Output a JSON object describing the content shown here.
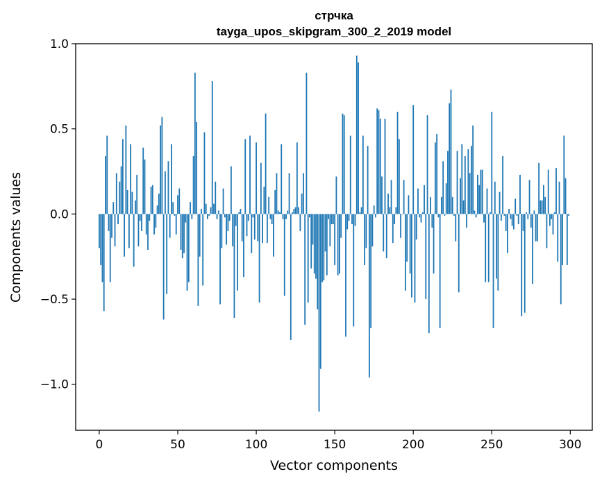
{
  "chart_data": {
    "type": "bar",
    "title_line1": "стрчка",
    "title_line2": "tayga_upos_skipgram_300_2_2019 model",
    "xlabel": "Vector components",
    "ylabel": "Components values",
    "xlim": [
      -15,
      314
    ],
    "ylim": [
      -1.27,
      1.0
    ],
    "xticks": [
      0,
      50,
      100,
      150,
      200,
      250,
      300
    ],
    "xtick_labels": [
      "0",
      "50",
      "100",
      "150",
      "200",
      "250",
      "300"
    ],
    "yticks": [
      1.0,
      0.5,
      0.0,
      -0.5,
      -1.0
    ],
    "ytick_labels": [
      "1.0",
      "0.5",
      "0.0",
      "−0.5",
      "−1.0"
    ],
    "grid": false,
    "bar_color": "#1f77b4",
    "values": [
      -0.2,
      -0.3,
      -0.4,
      -0.57,
      0.34,
      0.46,
      -0.1,
      -0.4,
      -0.14,
      0.07,
      -0.19,
      0.24,
      -0.06,
      0.19,
      0.28,
      0.44,
      -0.25,
      0.52,
      0.14,
      -0.2,
      0.41,
      0.13,
      -0.31,
      0.08,
      0.23,
      -0.19,
      -0.04,
      -0.1,
      0.39,
      0.32,
      -0.12,
      -0.21,
      -0.04,
      0.16,
      0.17,
      -0.12,
      -0.08,
      0.05,
      0.12,
      0.52,
      0.57,
      -0.62,
      0.25,
      -0.47,
      0.31,
      -0.14,
      0.41,
      0.07,
      -0.01,
      -0.12,
      0.11,
      0.15,
      -0.21,
      -0.26,
      -0.23,
      -0.05,
      -0.45,
      -0.4,
      0.07,
      -0.03,
      0.34,
      0.83,
      0.54,
      -0.54,
      -0.25,
      0.03,
      -0.42,
      0.48,
      0.06,
      -0.03,
      -0.01,
      0.04,
      0.78,
      0.06,
      0.19,
      -0.03,
      0.02,
      -0.53,
      -0.2,
      0.15,
      -0.02,
      -0.18,
      -0.1,
      -0.04,
      0.28,
      -0.19,
      -0.61,
      -0.07,
      -0.45,
      0.01,
      0.03,
      -0.16,
      -0.37,
      0.44,
      -0.13,
      -0.04,
      0.46,
      -0.23,
      -0.02,
      -0.15,
      0.42,
      -0.16,
      -0.52,
      0.3,
      -0.17,
      0.16,
      0.59,
      -0.17,
      0.1,
      -0.03,
      -0.06,
      -0.25,
      0.14,
      0.24,
      0.02,
      0.01,
      0.41,
      -0.03,
      -0.48,
      -0.03,
      0.02,
      0.24,
      -0.74,
      0.01,
      0.03,
      0.04,
      0.42,
      0.04,
      -0.1,
      0.12,
      0.24,
      -0.65,
      0.83,
      -0.52,
      -0.02,
      -0.32,
      -0.18,
      -0.35,
      -0.38,
      -0.56,
      -1.16,
      -0.91,
      -0.4,
      -0.39,
      -0.22,
      -0.36,
      -0.03,
      -0.19,
      -0.06,
      -0.06,
      -0.3,
      0.22,
      -0.36,
      -0.35,
      -0.14,
      0.59,
      0.58,
      -0.72,
      -0.09,
      -0.04,
      0.46,
      -0.06,
      -0.66,
      -0.07,
      0.93,
      0.89,
      0.01,
      0.04,
      0.46,
      -0.3,
      -0.2,
      0.4,
      -0.96,
      -0.67,
      -0.19,
      0.05,
      -0.02,
      0.62,
      0.61,
      0.56,
      0.22,
      -0.22,
      0.56,
      -0.26,
      0.12,
      0.04,
      0.2,
      -0.17,
      -0.06,
      0.04,
      0.6,
      0.44,
      -0.14,
      0.0,
      0.2,
      -0.45,
      -0.28,
      0.11,
      -0.35,
      -0.49,
      0.64,
      -0.52,
      -0.15,
      0.15,
      -0.02,
      -0.05,
      0.01,
      0.17,
      -0.5,
      0.58,
      -0.7,
      0.1,
      -0.08,
      -0.35,
      0.42,
      0.47,
      -0.02,
      -0.67,
      0.1,
      0.31,
      -0.01,
      0.18,
      0.37,
      0.65,
      0.73,
      0.1,
      -0.01,
      -0.16,
      0.37,
      -0.46,
      0.21,
      0.41,
      0.08,
      0.34,
      -0.08,
      0.38,
      0.24,
      0.4,
      0.52,
      0.02,
      -0.02,
      0.23,
      0.17,
      0.26,
      0.26,
      -0.05,
      -0.4,
      0.15,
      -0.4,
      0.01,
      0.6,
      -0.67,
      0.19,
      -0.38,
      -0.45,
      0.13,
      -0.04,
      0.34,
      -0.01,
      -0.1,
      -0.23,
      0.03,
      -0.03,
      -0.07,
      -0.09,
      0.09,
      -0.01,
      -0.06,
      0.23,
      -0.6,
      -0.1,
      -0.58,
      0.01,
      -0.03,
      0.2,
      -0.08,
      -0.41,
      0.02,
      -0.16,
      -0.16,
      0.3,
      0.08,
      0.08,
      0.17,
      0.1,
      -0.2,
      0.26,
      -0.07,
      -0.03,
      -0.12,
      0.01,
      0.27,
      -0.28,
      0.19,
      -0.53,
      -0.3,
      0.46,
      0.21,
      -0.3,
      -0.01
    ]
  }
}
